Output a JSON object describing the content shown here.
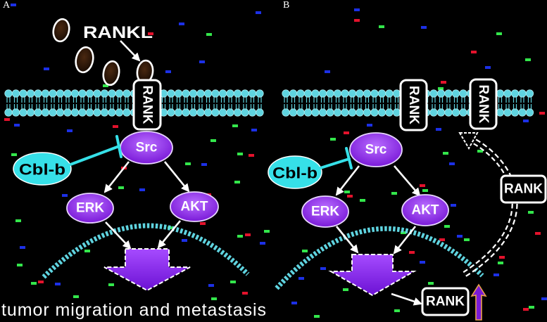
{
  "panel_a": {
    "label": "A",
    "ligand_label": "RANKL",
    "receptor_label": "RANK",
    "src_label": "Src",
    "cblb_label": "Cbl-b",
    "erk_label": "ERK",
    "akt_label": "AKT",
    "outcome_label": "tumor migration and metastasis"
  },
  "panel_b": {
    "label": "B",
    "membrane_receptor_labels": [
      "RANK",
      "RANK"
    ],
    "recycling_receptor_label": "RANK",
    "nuclear_output_label": "RANK",
    "src_label": "Src",
    "cblb_label": "Cbl-b",
    "erk_label": "ERK",
    "akt_label": "AKT"
  },
  "colors": {
    "background": "#000000",
    "membrane": "#5fd4e0",
    "cblb": "#36e0e8",
    "kinase": "#7a1ad8",
    "output_arrow": "#6c12d4",
    "upregulation_arrow_outline": "#e9a24a",
    "outline": "#ffffff"
  }
}
